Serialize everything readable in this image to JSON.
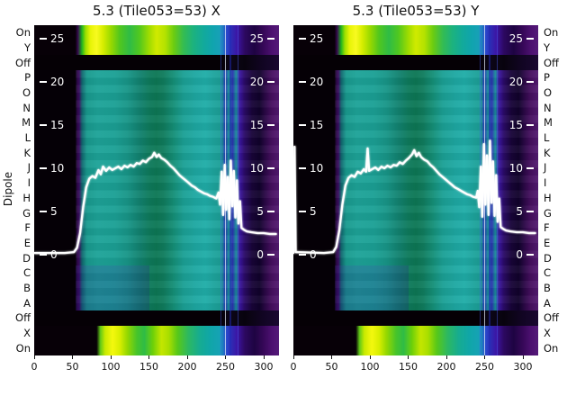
{
  "figure": {
    "ylabel": "Dipole",
    "titles": {
      "left": "5.3 (Tile053=53) X",
      "right": "5.3 (Tile053=53) Y"
    },
    "dipole_labels": [
      "On",
      "Y",
      "Off",
      "P",
      "O",
      "N",
      "M",
      "L",
      "K",
      "J",
      "I",
      "H",
      "G",
      "F",
      "E",
      "D",
      "C",
      "B",
      "A",
      "Off",
      "X",
      "On"
    ],
    "inner_y_ticks": [
      25,
      20,
      15,
      10,
      5,
      0
    ],
    "x_ticks": [
      0,
      50,
      100,
      150,
      200,
      250,
      300
    ]
  },
  "palette": {
    "background": "#ffffff",
    "overlay_line": "#ffffff",
    "teal": "#1da398",
    "dark_green_band": "#0d7754",
    "bright_yellow": "#f4f80e",
    "blue_lines": "#2a48cc",
    "purple_right": "#541a78",
    "black_regions": "#050005"
  },
  "chart_data": [
    {
      "type": "heatmap",
      "title": "5.3 (Tile053=53) X",
      "ylabel": "Dipole",
      "x_range": [
        0,
        320
      ],
      "x_ticks": [
        0,
        50,
        100,
        150,
        200,
        250,
        300
      ],
      "rows_top_to_bottom": [
        "On",
        "Y",
        "Off",
        "P",
        "O",
        "N",
        "M",
        "L",
        "K",
        "J",
        "I",
        "H",
        "G",
        "F",
        "E",
        "D",
        "C",
        "B",
        "A",
        "Off",
        "X",
        "On"
      ],
      "inner_y_ticks": [
        25,
        20,
        15,
        10,
        5,
        0
      ],
      "overlay_line": {
        "color": "#ffffff",
        "points": [
          [
            0,
            0.2
          ],
          [
            40,
            0.2
          ],
          [
            52,
            0.3
          ],
          [
            56,
            0.8
          ],
          [
            60,
            2.5
          ],
          [
            64,
            5.5
          ],
          [
            68,
            7.8
          ],
          [
            72,
            8.8
          ],
          [
            76,
            9.1
          ],
          [
            80,
            8.9
          ],
          [
            84,
            9.8
          ],
          [
            87,
            9.3
          ],
          [
            90,
            10.2
          ],
          [
            94,
            9.7
          ],
          [
            98,
            10.1
          ],
          [
            102,
            9.8
          ],
          [
            106,
            10.0
          ],
          [
            110,
            10.2
          ],
          [
            114,
            9.9
          ],
          [
            118,
            10.3
          ],
          [
            122,
            10.1
          ],
          [
            126,
            10.4
          ],
          [
            130,
            10.2
          ],
          [
            134,
            10.6
          ],
          [
            138,
            10.5
          ],
          [
            142,
            10.9
          ],
          [
            146,
            10.7
          ],
          [
            150,
            11.1
          ],
          [
            154,
            11.3
          ],
          [
            157,
            11.8
          ],
          [
            160,
            11.3
          ],
          [
            163,
            11.6
          ],
          [
            166,
            11.2
          ],
          [
            170,
            11.0
          ],
          [
            174,
            10.7
          ],
          [
            178,
            10.3
          ],
          [
            182,
            10.0
          ],
          [
            186,
            9.6
          ],
          [
            190,
            9.2
          ],
          [
            194,
            8.9
          ],
          [
            198,
            8.6
          ],
          [
            202,
            8.3
          ],
          [
            206,
            8.0
          ],
          [
            210,
            7.8
          ],
          [
            214,
            7.5
          ],
          [
            218,
            7.3
          ],
          [
            222,
            7.1
          ],
          [
            226,
            7.0
          ],
          [
            230,
            6.8
          ],
          [
            234,
            6.7
          ],
          [
            238,
            6.5
          ],
          [
            241,
            7.2
          ],
          [
            243,
            5.8
          ],
          [
            245,
            9.6
          ],
          [
            247,
            4.6
          ],
          [
            249,
            10.4
          ],
          [
            251,
            5.2
          ],
          [
            253,
            9.0
          ],
          [
            255,
            4.1
          ],
          [
            257,
            10.9
          ],
          [
            259,
            5.6
          ],
          [
            261,
            9.7
          ],
          [
            263,
            4.3
          ],
          [
            265,
            8.6
          ],
          [
            267,
            3.6
          ],
          [
            269,
            6.2
          ],
          [
            271,
            3.1
          ],
          [
            274,
            2.9
          ],
          [
            278,
            2.7
          ],
          [
            284,
            2.6
          ],
          [
            292,
            2.5
          ],
          [
            300,
            2.5
          ],
          [
            308,
            2.4
          ],
          [
            316,
            2.4
          ]
        ]
      }
    },
    {
      "type": "heatmap",
      "title": "5.3 (Tile053=53) Y",
      "ylabel": "Dipole",
      "x_range": [
        0,
        320
      ],
      "x_ticks": [
        0,
        50,
        100,
        150,
        200,
        250,
        300
      ],
      "rows_top_to_bottom": [
        "On",
        "Y",
        "Off",
        "P",
        "O",
        "N",
        "M",
        "L",
        "K",
        "J",
        "I",
        "H",
        "G",
        "F",
        "E",
        "D",
        "C",
        "B",
        "A",
        "Off",
        "X",
        "On"
      ],
      "inner_y_ticks": [
        25,
        20,
        15,
        10,
        5,
        0
      ],
      "overlay_line": {
        "color": "#ffffff",
        "points": [
          [
            0,
            0.2
          ],
          [
            1.5,
            12.5
          ],
          [
            3,
            0.3
          ],
          [
            40,
            0.2
          ],
          [
            52,
            0.3
          ],
          [
            56,
            0.9
          ],
          [
            60,
            2.8
          ],
          [
            64,
            5.8
          ],
          [
            68,
            8.0
          ],
          [
            72,
            8.9
          ],
          [
            76,
            9.2
          ],
          [
            80,
            9.0
          ],
          [
            84,
            9.6
          ],
          [
            88,
            9.4
          ],
          [
            92,
            9.9
          ],
          [
            95,
            9.6
          ],
          [
            97,
            12.3
          ],
          [
            99,
            9.7
          ],
          [
            103,
            9.9
          ],
          [
            107,
            10.1
          ],
          [
            111,
            9.8
          ],
          [
            115,
            10.2
          ],
          [
            119,
            10.0
          ],
          [
            123,
            10.3
          ],
          [
            127,
            10.1
          ],
          [
            131,
            10.4
          ],
          [
            135,
            10.3
          ],
          [
            139,
            10.7
          ],
          [
            143,
            10.5
          ],
          [
            147,
            10.9
          ],
          [
            151,
            11.2
          ],
          [
            155,
            11.6
          ],
          [
            158,
            12.1
          ],
          [
            161,
            11.4
          ],
          [
            164,
            11.8
          ],
          [
            167,
            11.3
          ],
          [
            171,
            11.0
          ],
          [
            175,
            10.8
          ],
          [
            179,
            10.4
          ],
          [
            183,
            10.1
          ],
          [
            187,
            9.7
          ],
          [
            191,
            9.3
          ],
          [
            195,
            9.0
          ],
          [
            199,
            8.7
          ],
          [
            203,
            8.4
          ],
          [
            207,
            8.1
          ],
          [
            211,
            7.8
          ],
          [
            215,
            7.6
          ],
          [
            219,
            7.4
          ],
          [
            223,
            7.2
          ],
          [
            227,
            7.0
          ],
          [
            231,
            6.9
          ],
          [
            235,
            6.7
          ],
          [
            239,
            6.6
          ],
          [
            241,
            7.4
          ],
          [
            243,
            5.5
          ],
          [
            245,
            10.2
          ],
          [
            247,
            4.4
          ],
          [
            249,
            12.8
          ],
          [
            251,
            5.8
          ],
          [
            253,
            11.5
          ],
          [
            255,
            4.6
          ],
          [
            257,
            13.2
          ],
          [
            259,
            6.0
          ],
          [
            261,
            10.8
          ],
          [
            263,
            4.5
          ],
          [
            265,
            9.2
          ],
          [
            267,
            3.8
          ],
          [
            269,
            6.5
          ],
          [
            271,
            3.2
          ],
          [
            274,
            3.0
          ],
          [
            278,
            2.8
          ],
          [
            284,
            2.7
          ],
          [
            292,
            2.6
          ],
          [
            300,
            2.6
          ],
          [
            308,
            2.5
          ],
          [
            316,
            2.5
          ]
        ]
      }
    }
  ]
}
